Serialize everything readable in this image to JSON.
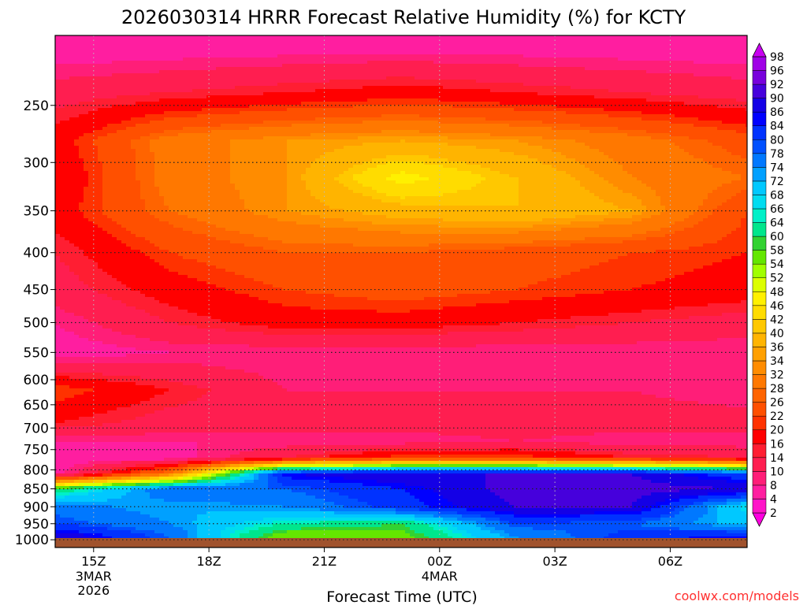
{
  "chart_data": {
    "type": "heatmap",
    "title": "2026030314 HRRR Forecast Relative Humidity (%) for KCTY",
    "xlabel": "Forecast Time (UTC)",
    "ylabel": "",
    "x_ticks": [
      {
        "label": "15Z",
        "sub": [
          "3MAR",
          "2026"
        ],
        "hour": 15
      },
      {
        "label": "18Z",
        "sub": [],
        "hour": 18
      },
      {
        "label": "21Z",
        "sub": [],
        "hour": 21
      },
      {
        "label": "00Z",
        "sub": [
          "4MAR"
        ],
        "hour": 24
      },
      {
        "label": "03Z",
        "sub": [],
        "hour": 27
      },
      {
        "label": "06Z",
        "sub": [],
        "hour": 30
      }
    ],
    "xlim": [
      14,
      32
    ],
    "y_ticks": [
      250,
      300,
      350,
      400,
      450,
      500,
      550,
      600,
      650,
      700,
      750,
      800,
      850,
      900,
      950,
      1000
    ],
    "ylim": [
      200,
      1025
    ],
    "y_scale": "log",
    "y_inverted": true,
    "grid": true,
    "colorbar": {
      "levels": [
        2,
        4,
        8,
        10,
        14,
        16,
        20,
        22,
        26,
        28,
        32,
        34,
        36,
        40,
        42,
        46,
        48,
        52,
        54,
        58,
        60,
        64,
        66,
        68,
        72,
        74,
        78,
        80,
        84,
        86,
        90,
        92,
        96,
        98
      ],
      "colors": [
        "#ff00e0",
        "#ff14c8",
        "#ff1ea0",
        "#ff1e78",
        "#ff1e50",
        "#ff1e32",
        "#ff0000",
        "#ff3200",
        "#ff5000",
        "#ff6400",
        "#ff7800",
        "#ff8c00",
        "#ffa000",
        "#ffb400",
        "#ffc800",
        "#ffdc00",
        "#fff000",
        "#dcff00",
        "#a0ff00",
        "#64e600",
        "#32d232",
        "#00e68c",
        "#00f0c8",
        "#00dcf0",
        "#00c8ff",
        "#00a0ff",
        "#0078ff",
        "#0050ff",
        "#0032ff",
        "#0000ff",
        "#1400e6",
        "#4600dc",
        "#7800dc",
        "#a000e6",
        "#c800f0"
      ],
      "position": "right"
    },
    "layers": [
      {
        "pressure": 200,
        "rh": [
          4,
          4,
          4,
          4,
          4,
          4,
          4
        ]
      },
      {
        "pressure": 240,
        "rh": [
          12,
          14,
          16,
          18,
          16,
          14,
          12
        ]
      },
      {
        "pressure": 280,
        "rh": [
          18,
          30,
          34,
          36,
          34,
          30,
          24
        ]
      },
      {
        "pressure": 315,
        "rh": [
          16,
          30,
          34,
          48,
          40,
          32,
          28
        ]
      },
      {
        "pressure": 350,
        "rh": [
          18,
          28,
          34,
          38,
          40,
          36,
          22
        ]
      },
      {
        "pressure": 400,
        "rh": [
          14,
          22,
          26,
          26,
          24,
          22,
          20
        ]
      },
      {
        "pressure": 450,
        "rh": [
          12,
          18,
          22,
          24,
          22,
          20,
          18
        ]
      },
      {
        "pressure": 500,
        "rh": [
          8,
          14,
          18,
          18,
          16,
          14,
          12
        ]
      },
      {
        "pressure": 550,
        "rh": [
          6,
          8,
          8,
          8,
          8,
          8,
          8
        ]
      },
      {
        "pressure": 620,
        "rh": [
          22,
          16,
          10,
          10,
          10,
          10,
          8
        ]
      },
      {
        "pressure": 690,
        "rh": [
          16,
          12,
          12,
          12,
          12,
          12,
          12
        ]
      },
      {
        "pressure": 730,
        "rh": [
          8,
          8,
          8,
          8,
          10,
          8,
          8
        ]
      },
      {
        "pressure": 770,
        "rh": [
          6,
          6,
          14,
          22,
          22,
          16,
          14
        ]
      },
      {
        "pressure": 810,
        "rh": [
          6,
          30,
          86,
          90,
          90,
          90,
          80
        ]
      },
      {
        "pressure": 850,
        "rh": [
          60,
          78,
          78,
          84,
          92,
          92,
          90
        ]
      },
      {
        "pressure": 900,
        "rh": [
          76,
          72,
          74,
          82,
          90,
          90,
          66
        ]
      },
      {
        "pressure": 950,
        "rh": [
          80,
          74,
          64,
          60,
          80,
          78,
          70
        ]
      },
      {
        "pressure": 990,
        "rh": [
          90,
          78,
          54,
          56,
          74,
          82,
          86
        ]
      }
    ],
    "surface_pressure": 1013
  },
  "footer": {
    "credit": "coolwx.com/models",
    "credit_color": "#ff3030"
  }
}
